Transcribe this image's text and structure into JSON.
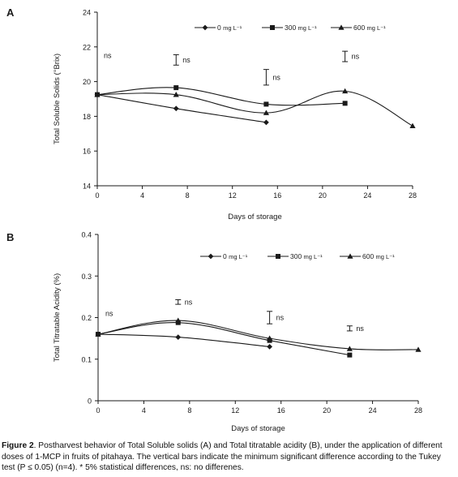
{
  "chart_data": [
    {
      "panel_label": "A",
      "type": "line",
      "ylabel": "Total Soluble Solids (°Brix)",
      "xlabel": "Days of storage",
      "xlim": [
        0,
        28
      ],
      "ylim": [
        14,
        24
      ],
      "x_ticks": [
        "0",
        "4",
        "8",
        "12",
        "16",
        "20",
        "24",
        "28"
      ],
      "y_ticks": [
        "14",
        "16",
        "18",
        "20",
        "22",
        "24"
      ],
      "legend_placement": "top",
      "series": [
        {
          "name": "0",
          "unit": "mg L⁻¹",
          "marker": "diamond",
          "x": [
            0,
            7,
            15
          ],
          "values": [
            19.25,
            18.45,
            17.65
          ]
        },
        {
          "name": "300",
          "unit": "mg L⁻¹",
          "marker": "square",
          "x": [
            0,
            7,
            15,
            22
          ],
          "values": [
            19.25,
            19.65,
            18.7,
            18.75
          ]
        },
        {
          "name": "600",
          "unit": "mg L⁻¹",
          "marker": "triangle",
          "x": [
            0,
            7,
            15,
            22,
            28
          ],
          "values": [
            19.25,
            19.25,
            18.2,
            19.45,
            17.45
          ]
        }
      ],
      "error_bars": [
        {
          "x": 7,
          "low": 20.95,
          "high": 21.55,
          "label": "ns"
        },
        {
          "x": 15,
          "low": 19.8,
          "high": 20.7,
          "label": "ns"
        },
        {
          "x": 22,
          "low": 21.15,
          "high": 21.75,
          "label": "ns"
        }
      ],
      "annotations": [
        {
          "text": "ns",
          "x": 0.5,
          "y": 21.5
        }
      ]
    },
    {
      "panel_label": "B",
      "type": "line",
      "ylabel": "Total  Titratable Acidity (%)",
      "xlabel": "Days of storage",
      "xlim": [
        0,
        28
      ],
      "ylim": [
        0,
        0.4
      ],
      "x_ticks": [
        "0",
        "4",
        "8",
        "12",
        "16",
        "20",
        "24",
        "28"
      ],
      "y_ticks": [
        "0",
        "0.1",
        "0.2",
        "0.3",
        "0.4"
      ],
      "legend_placement": "top",
      "series": [
        {
          "name": "0",
          "unit": "mg L⁻¹",
          "marker": "diamond",
          "x": [
            0,
            7,
            15
          ],
          "values": [
            0.16,
            0.153,
            0.13
          ]
        },
        {
          "name": "300",
          "unit": "mg L⁻¹",
          "marker": "square",
          "x": [
            0,
            7,
            15,
            22
          ],
          "values": [
            0.16,
            0.188,
            0.145,
            0.11
          ]
        },
        {
          "name": "600",
          "unit": "mg L⁻¹",
          "marker": "triangle",
          "x": [
            0,
            7,
            15,
            22,
            28
          ],
          "values": [
            0.16,
            0.193,
            0.15,
            0.125,
            0.123
          ]
        }
      ],
      "error_bars": [
        {
          "x": 7,
          "low": 0.232,
          "high": 0.243,
          "label": "ns"
        },
        {
          "x": 15,
          "low": 0.185,
          "high": 0.215,
          "label": "ns"
        },
        {
          "x": 22,
          "low": 0.168,
          "high": 0.18,
          "label": "ns"
        }
      ],
      "annotations": [
        {
          "text": "ns",
          "x": 0.5,
          "y": 0.21
        }
      ]
    }
  ],
  "caption": {
    "label": "Figure 2",
    "text": ". Postharvest behavior of Total Soluble solids (A) and Total titratable acidity (B), under the application of different doses of 1-MCP in fruits of pitahaya. The vertical bars indicate the minimum significant difference according to the Tukey test (P ≤ 0.05) (n=4). * 5% statistical differences, ns: no differenes."
  }
}
